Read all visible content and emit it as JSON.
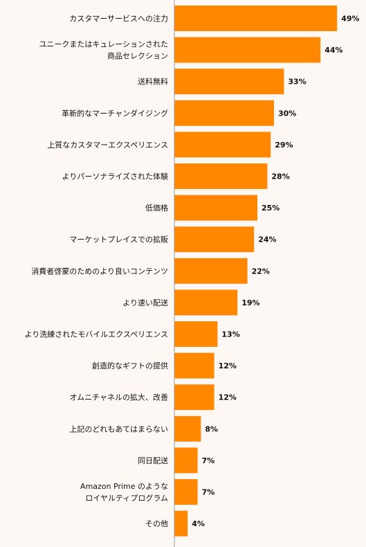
{
  "colors": {
    "bar": "#ff8800",
    "axis": "#999999",
    "background": "#fdf8f4",
    "text": "#111111"
  },
  "chart_data": {
    "type": "bar",
    "orientation": "horizontal",
    "grid": false,
    "xlim": [
      0,
      50
    ],
    "categories": [
      [
        "カスタマーサービスへの注力"
      ],
      [
        "ユニークまたはキュレーションされた",
        "商品セレクション"
      ],
      [
        "送料無料"
      ],
      [
        "革新的なマーチャンダイジング"
      ],
      [
        "上質なカスタマーエクスペリエンス"
      ],
      [
        "よりパーソナライズされた体験"
      ],
      [
        "低価格"
      ],
      [
        "マーケットプレイスでの拡販"
      ],
      [
        "消費者啓蒙のためのより良いコンテンツ"
      ],
      [
        "より速い配送"
      ],
      [
        "より洗練されたモバイルエクスペリエンス"
      ],
      [
        "創造的なギフトの提供"
      ],
      [
        "オムニチャネルの拡大、改善"
      ],
      [
        "上記のどれもあてはまらない"
      ],
      [
        "同日配送"
      ],
      [
        "Amazon Prime のような",
        "ロイヤルティプログラム"
      ],
      [
        "その他"
      ]
    ],
    "values": [
      49,
      44,
      33,
      30,
      29,
      28,
      25,
      24,
      22,
      19,
      13,
      12,
      12,
      8,
      7,
      7,
      4
    ],
    "value_labels": [
      "49%",
      "44%",
      "33%",
      "30%",
      "29%",
      "28%",
      "25%",
      "24%",
      "22%",
      "19%",
      "13%",
      "12%",
      "12%",
      "8%",
      "7%",
      "7%",
      "4%"
    ]
  }
}
